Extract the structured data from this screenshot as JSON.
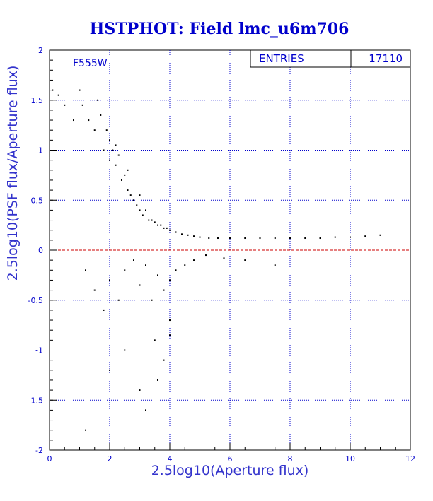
{
  "chart_data": {
    "type": "scatter",
    "title": "HSTPHOT: Field lmc_u6m706",
    "xlabel": "2.5log10(Aperture flux)",
    "ylabel": "2.5log10(PSF flux/Aperture flux)",
    "xlim": [
      0,
      12
    ],
    "ylim": [
      -2,
      2
    ],
    "x_ticks": [
      "0",
      "2",
      "4",
      "6",
      "8",
      "10",
      "12"
    ],
    "y_ticks": [
      "2",
      "1.5",
      "1",
      "0.5",
      "0",
      "-0.5",
      "-1",
      "-1.5",
      "-2"
    ],
    "grid": true,
    "reference_line": {
      "y": 0,
      "color": "#cc0000",
      "style": "dashed"
    },
    "annotation": "F555W",
    "stats_box": {
      "label": "ENTRIES",
      "value": "17110"
    },
    "series": [
      {
        "marker_color": "#000000",
        "x": [
          0.1,
          0.3,
          0.5,
          0.8,
          1.0,
          1.1,
          1.3,
          1.5,
          1.6,
          1.7,
          1.8,
          1.9,
          2.0,
          2.0,
          2.1,
          2.2,
          2.2,
          2.3,
          2.4,
          2.5,
          2.6,
          2.6,
          2.7,
          2.8,
          2.9,
          3.0,
          3.0,
          3.1,
          3.2,
          3.3,
          3.4,
          3.5,
          3.6,
          3.7,
          3.8,
          3.9,
          4.0,
          4.2,
          4.4,
          4.6,
          4.8,
          5.0,
          5.3,
          5.6,
          6.0,
          6.5,
          7.0,
          7.5,
          8.0,
          8.5,
          9.0,
          9.5,
          10.0,
          10.5,
          11.0,
          1.2,
          1.5,
          1.8,
          2.0,
          2.3,
          2.5,
          2.8,
          3.0,
          3.2,
          3.4,
          3.6,
          3.8,
          4.0,
          4.2,
          4.5,
          4.8,
          5.2,
          5.8,
          6.5,
          7.5,
          2.0,
          2.5,
          3.0,
          3.5,
          4.0,
          1.2,
          3.2,
          3.6,
          3.8,
          4.0
        ],
        "y": [
          1.6,
          1.55,
          1.45,
          1.3,
          1.6,
          1.45,
          1.3,
          1.2,
          1.5,
          1.35,
          1.0,
          1.2,
          1.1,
          0.9,
          1.0,
          0.85,
          1.05,
          0.95,
          0.7,
          0.75,
          0.6,
          0.8,
          0.55,
          0.5,
          0.45,
          0.4,
          0.55,
          0.35,
          0.4,
          0.3,
          0.3,
          0.28,
          0.25,
          0.25,
          0.22,
          0.22,
          0.2,
          0.18,
          0.16,
          0.15,
          0.14,
          0.13,
          0.12,
          0.12,
          0.12,
          0.12,
          0.12,
          0.12,
          0.12,
          0.12,
          0.12,
          0.13,
          0.13,
          0.14,
          0.15,
          -0.2,
          -0.4,
          -0.6,
          -0.3,
          -0.5,
          -0.2,
          -0.1,
          -0.35,
          -0.15,
          -0.5,
          -0.25,
          -0.4,
          -0.3,
          -0.2,
          -0.15,
          -0.1,
          -0.05,
          -0.08,
          -0.1,
          -0.15,
          -1.2,
          -1.0,
          -1.4,
          -0.9,
          -0.7,
          -1.8,
          -1.6,
          -1.3,
          -1.1,
          -0.85
        ]
      }
    ]
  }
}
